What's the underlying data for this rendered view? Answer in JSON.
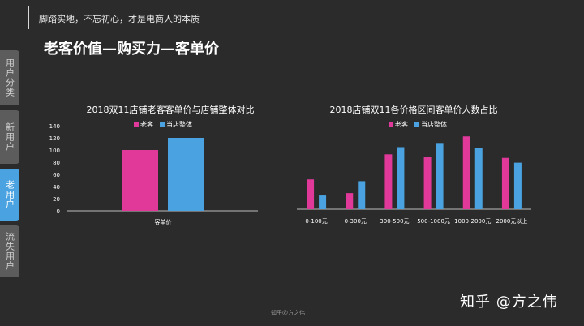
{
  "header": {
    "slogan": "脚踏实地，不忘初心，才是电商人的本质",
    "title": "老客价值—购买力—客单价"
  },
  "sidebar": {
    "items": [
      {
        "label": "用户分类",
        "active": false
      },
      {
        "label": "新用户",
        "active": false
      },
      {
        "label": "老用户",
        "active": true
      },
      {
        "label": "流失用户",
        "active": false
      }
    ]
  },
  "colors": {
    "old": "#e0399a",
    "store": "#4aa3e0",
    "active_tab": "#4aa3e0"
  },
  "chart_data": [
    {
      "type": "bar",
      "title": "2018双11店铺老客客单价与店铺整体对比",
      "categories": [
        "客单价"
      ],
      "series": [
        {
          "name": "老客",
          "values": [
            100
          ]
        },
        {
          "name": "当店整体",
          "values": [
            120
          ]
        }
      ],
      "ylim": [
        0,
        140
      ],
      "yticks": [
        "0",
        "20",
        "40",
        "60",
        "80",
        "100",
        "120",
        "140"
      ],
      "legend": "top-center",
      "grid": false
    },
    {
      "type": "bar",
      "title": "2018店铺双11各价格区间客单价人数占比",
      "categories": [
        "0-100元",
        "0-300元",
        "300-500元",
        "500-1000元",
        "1000-2000元",
        "2000元以上"
      ],
      "series": [
        {
          "name": "老客",
          "values": [
            50,
            27,
            92,
            88,
            122,
            86
          ]
        },
        {
          "name": "当店整体",
          "values": [
            23,
            47,
            104,
            111,
            102,
            78
          ]
        }
      ],
      "ylim": [
        0,
        140
      ],
      "legend": "top-center",
      "grid": false
    }
  ],
  "watermark": {
    "main": "知乎 @方之伟",
    "small": "知乎@方之伟"
  }
}
